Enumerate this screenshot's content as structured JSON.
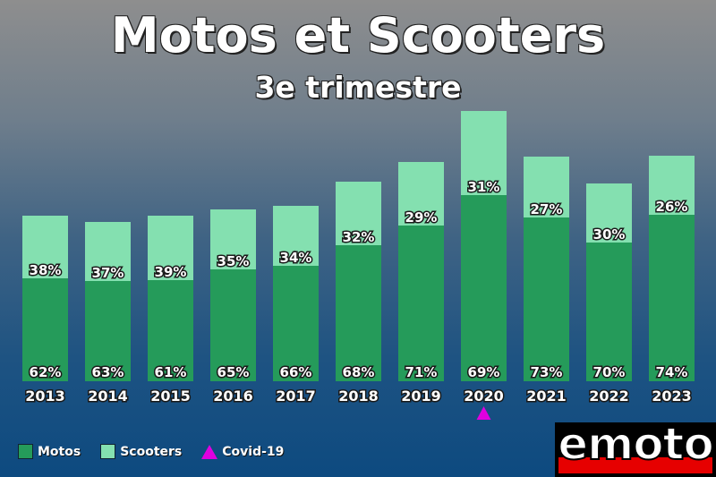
{
  "chart_data": {
    "type": "bar",
    "stacked": true,
    "title": "Motos et Scooters",
    "subtitle": "3e trimestre",
    "categories": [
      "2013",
      "2014",
      "2015",
      "2016",
      "2017",
      "2018",
      "2019",
      "2020",
      "2021",
      "2022",
      "2023"
    ],
    "totals": [
      185,
      178,
      185,
      192,
      196,
      223,
      245,
      302,
      251,
      221,
      252
    ],
    "series": [
      {
        "name": "Motos",
        "color": "#259b5a",
        "values": [
          115,
          112,
          113,
          125,
          129,
          152,
          174,
          208,
          183,
          155,
          186
        ],
        "labels": [
          "62%",
          "63%",
          "61%",
          "65%",
          "66%",
          "68%",
          "71%",
          "69%",
          "73%",
          "70%",
          "74%"
        ]
      },
      {
        "name": "Scooters",
        "color": "#84e0b0",
        "values": [
          70,
          66,
          72,
          67,
          67,
          71,
          71,
          94,
          68,
          66,
          66
        ],
        "labels": [
          "38%",
          "37%",
          "39%",
          "35%",
          "34%",
          "32%",
          "29%",
          "31%",
          "27%",
          "30%",
          "26%"
        ]
      }
    ],
    "annotations": [
      {
        "category": "2020",
        "marker": "triangle",
        "color": "#e000e0",
        "name": "Covid-19"
      }
    ],
    "grid": false,
    "legend_position": "bottom-left"
  },
  "legend": {
    "motos": "Motos",
    "scooters": "Scooters",
    "covid": "Covid-19"
  },
  "logo": {
    "text": "emoto"
  }
}
